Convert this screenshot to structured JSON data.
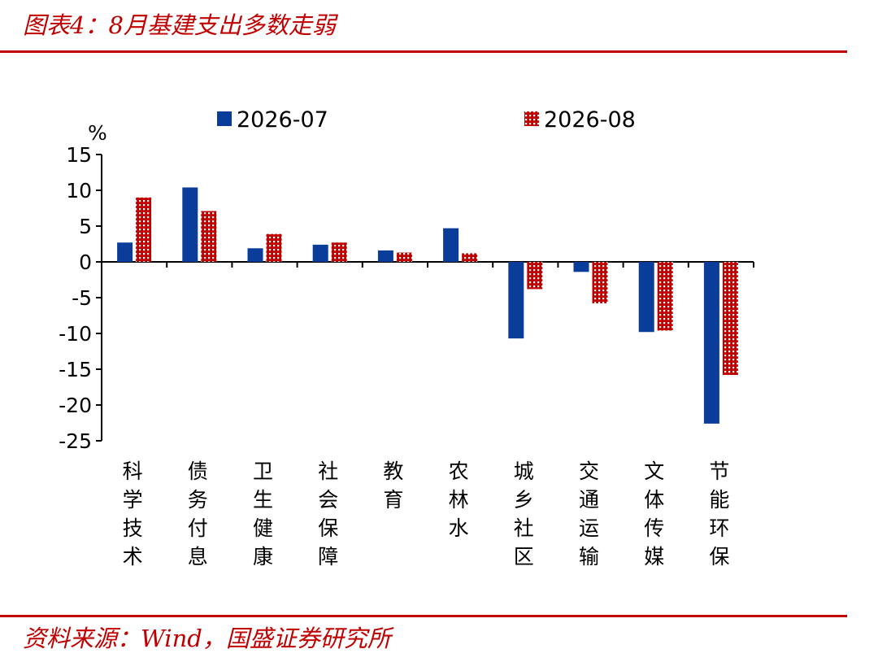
{
  "header": {
    "title": "图表4：8月基建支出多数走弱"
  },
  "footer": {
    "source": "资料来源：Wind，国盛证券研究所"
  },
  "colors": {
    "accent": "#c00000",
    "series1": "#0a3d99",
    "series2": "#c00000"
  },
  "chart_data": {
    "type": "bar",
    "title": "图表4：8月基建支出多数走弱",
    "ylabel": "%",
    "xlabel": "",
    "ylim": [
      -25,
      15
    ],
    "yticks": [
      15,
      10,
      5,
      0,
      -5,
      -10,
      -15,
      -20,
      -25
    ],
    "grid": false,
    "legend": "top",
    "categories": [
      "科学技术",
      "债务付息",
      "卫生健康",
      "社会保障",
      "教育",
      "农林水",
      "城乡社区",
      "交通运输",
      "文体传媒",
      "节能环保"
    ],
    "series": [
      {
        "name": "2026-07",
        "values": [
          2.7,
          10.4,
          1.9,
          2.4,
          1.6,
          4.7,
          -10.7,
          -1.4,
          -9.8,
          -22.6
        ]
      },
      {
        "name": "2026-08",
        "values": [
          9.0,
          7.1,
          3.9,
          2.7,
          1.3,
          1.2,
          -3.8,
          -5.8,
          -9.6,
          -15.8
        ]
      }
    ]
  }
}
